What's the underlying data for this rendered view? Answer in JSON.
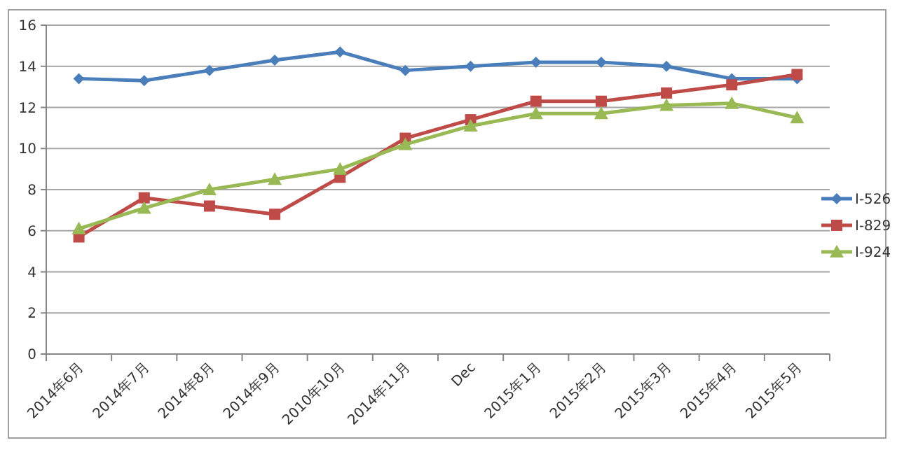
{
  "chart_data": {
    "type": "line",
    "categories": [
      "2014年6月",
      "2014年7月",
      "2014年8月",
      "2014年9月",
      "2010年10月",
      "2014年11月",
      "Dec",
      "2015年1月",
      "2015年2月",
      "2015年3月",
      "2015年4月",
      "2015年5月"
    ],
    "series": [
      {
        "name": "I-526",
        "color": "#4a7ebb",
        "marker": "diamond",
        "values": [
          13.4,
          13.3,
          13.8,
          14.3,
          14.7,
          13.8,
          14.0,
          14.2,
          14.2,
          14.0,
          13.4,
          13.4
        ]
      },
      {
        "name": "I-829",
        "color": "#be4b48",
        "marker": "square",
        "values": [
          5.7,
          7.6,
          7.2,
          6.8,
          8.6,
          10.5,
          11.4,
          12.3,
          12.3,
          12.7,
          13.1,
          13.6
        ]
      },
      {
        "name": "I-924",
        "color": "#98b954",
        "marker": "triangle",
        "values": [
          6.1,
          7.1,
          8.0,
          8.5,
          9.0,
          10.2,
          11.1,
          11.7,
          11.7,
          12.1,
          12.2,
          11.5
        ]
      }
    ],
    "ylim": [
      0,
      16
    ],
    "yticks": [
      0,
      2,
      4,
      6,
      8,
      10,
      12,
      14,
      16
    ],
    "grid": "y",
    "legend": "right",
    "line_style": "solid"
  }
}
